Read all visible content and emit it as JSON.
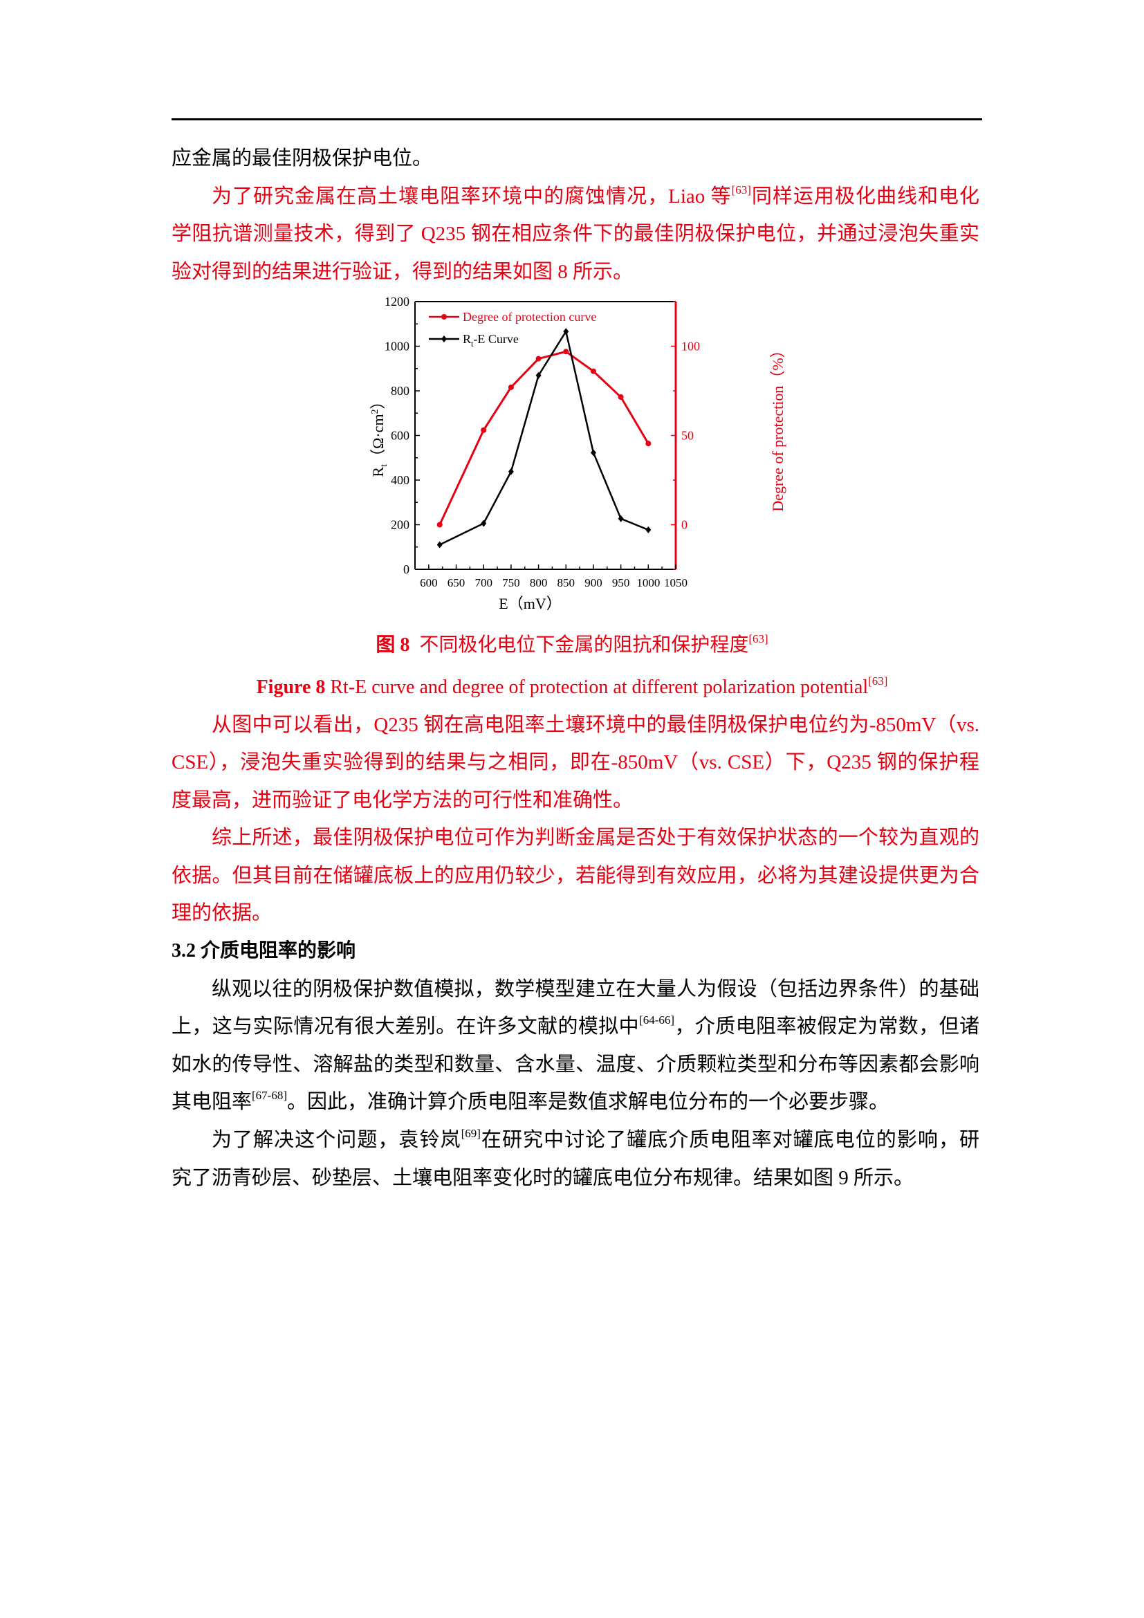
{
  "paragraphs_top": [
    {
      "color": "black",
      "lines": [
        [
          {
            "t": "应金属的最佳阴极保护电位。"
          }
        ]
      ]
    },
    {
      "color": "red",
      "lines": [
        [
          {
            "t": "为了研究金属在高土壤电阻率环境中的腐蚀情况，Liao 等"
          },
          {
            "t": "[63]",
            "sup": true
          },
          {
            "t": "同样运用极化曲线和电化"
          }
        ],
        [
          {
            "t": "学阻抗谱测量技术，得到了 Q235 钢在相应条件下的最佳阴极保护电位，并通过浸泡失重实"
          }
        ],
        [
          {
            "t": "验对得到的结果进行验证，得到的结果如图 8 所示。"
          }
        ]
      ]
    }
  ],
  "figure": {
    "caption_cn_label": "图 8",
    "caption_cn_text": "不同极化电位下金属的阻抗和保护程度",
    "caption_cn_ref": "[63]",
    "caption_en_label": "Figure 8",
    "caption_en_text": " Rt-E curve and degree of protection at different polarization potential",
    "caption_en_ref": "[63]"
  },
  "paragraphs_mid": [
    {
      "color": "red",
      "lines": [
        [
          {
            "t": "从图中可以看出，Q235 钢在高电阻率土壤环境中的最佳阴极保护电位约为-850mV（vs."
          }
        ],
        [
          {
            "t": "CSE），浸泡失重实验得到的结果与之相同，即在-850mV（vs. CSE）下，Q235 钢的保护程"
          }
        ],
        [
          {
            "t": "度最高，进而验证了电化学方法的可行性和准确性。"
          }
        ]
      ]
    },
    {
      "color": "red",
      "lines": [
        [
          {
            "t": "综上所述，最佳阴极保护电位可作为判断金属是否处于有效保护状态的一个较为直观的"
          }
        ],
        [
          {
            "t": "依据。但其目前在储罐底板上的应用仍较少，若能得到有效应用，必将为其建设提供更为合"
          }
        ],
        [
          {
            "t": "理的依据。"
          }
        ]
      ]
    }
  ],
  "section_heading": "3.2  介质电阻率的影响",
  "paragraphs_bottom": [
    {
      "color": "black",
      "lines": [
        [
          {
            "t": "纵观以往的阴极保护数值模拟，数学模型建立在大量人为假设（包括边界条件）的基础"
          }
        ],
        [
          {
            "t": "上，这与实际情况有很大差别。在许多文献的模拟中"
          },
          {
            "t": "[64-66]",
            "sup": true
          },
          {
            "t": "，介质电阻率被假定为常数，但诸"
          }
        ],
        [
          {
            "t": "如水的传导性、溶解盐的类型和数量、含水量、温度、介质颗粒类型和分布等因素都会影响"
          }
        ],
        [
          {
            "t": "其电阻率"
          },
          {
            "t": "[67-68]",
            "sup": true
          },
          {
            "t": "。因此，准确计算介质电阻率是数值求解电位分布的一个必要步骤。"
          }
        ]
      ]
    },
    {
      "color": "black",
      "lines": [
        [
          {
            "t": "为了解决这个问题，袁铃岚"
          },
          {
            "t": "[69]",
            "sup": true
          },
          {
            "t": "在研究中讨论了罐底介质电阻率对罐底电位的影响，研"
          }
        ],
        [
          {
            "t": "究了沥青砂层、砂垫层、土壤电阻率变化时的罐底电位分布规律。结果如图 9 所示。"
          }
        ]
      ]
    }
  ],
  "chart_data": {
    "type": "line",
    "x": [
      620,
      700,
      750,
      800,
      850,
      900,
      950,
      1000
    ],
    "xlabel": "E（mV）",
    "xlim": [
      575,
      1050
    ],
    "xticks": [
      "600",
      "650",
      "700",
      "750",
      "800",
      "850",
      "900",
      "950",
      "1000",
      "1050"
    ],
    "ylabel_left": {
      "main": "R",
      "sub": "t",
      "rest": "（Ω·cm",
      "sup": "2",
      "end": "）"
    },
    "ylim_left": [
      0,
      1200
    ],
    "yticks_left": [
      "0",
      "200",
      "400",
      "600",
      "800",
      "1000",
      "1200"
    ],
    "ylabel_right": "Degree of protection（%）",
    "ylim_right": [
      -25,
      125
    ],
    "yticks_right": [
      "0",
      "50",
      "100"
    ],
    "legend_position": "top-left",
    "grid": false,
    "series": [
      {
        "name": "Degree of protection curve",
        "axis": "right",
        "color": "#e60012",
        "marker": "circle",
        "values": [
          0,
          53,
          77,
          93,
          97,
          86,
          71.5,
          45.5
        ]
      },
      {
        "name": "Rt-E Curve",
        "name_main": "R",
        "name_sub": "t",
        "name_rest": "-E Curve",
        "axis": "left",
        "color": "#000000",
        "marker": "diamond",
        "values": [
          110,
          206,
          438,
          869,
          1066,
          523,
          227,
          177
        ]
      }
    ]
  }
}
